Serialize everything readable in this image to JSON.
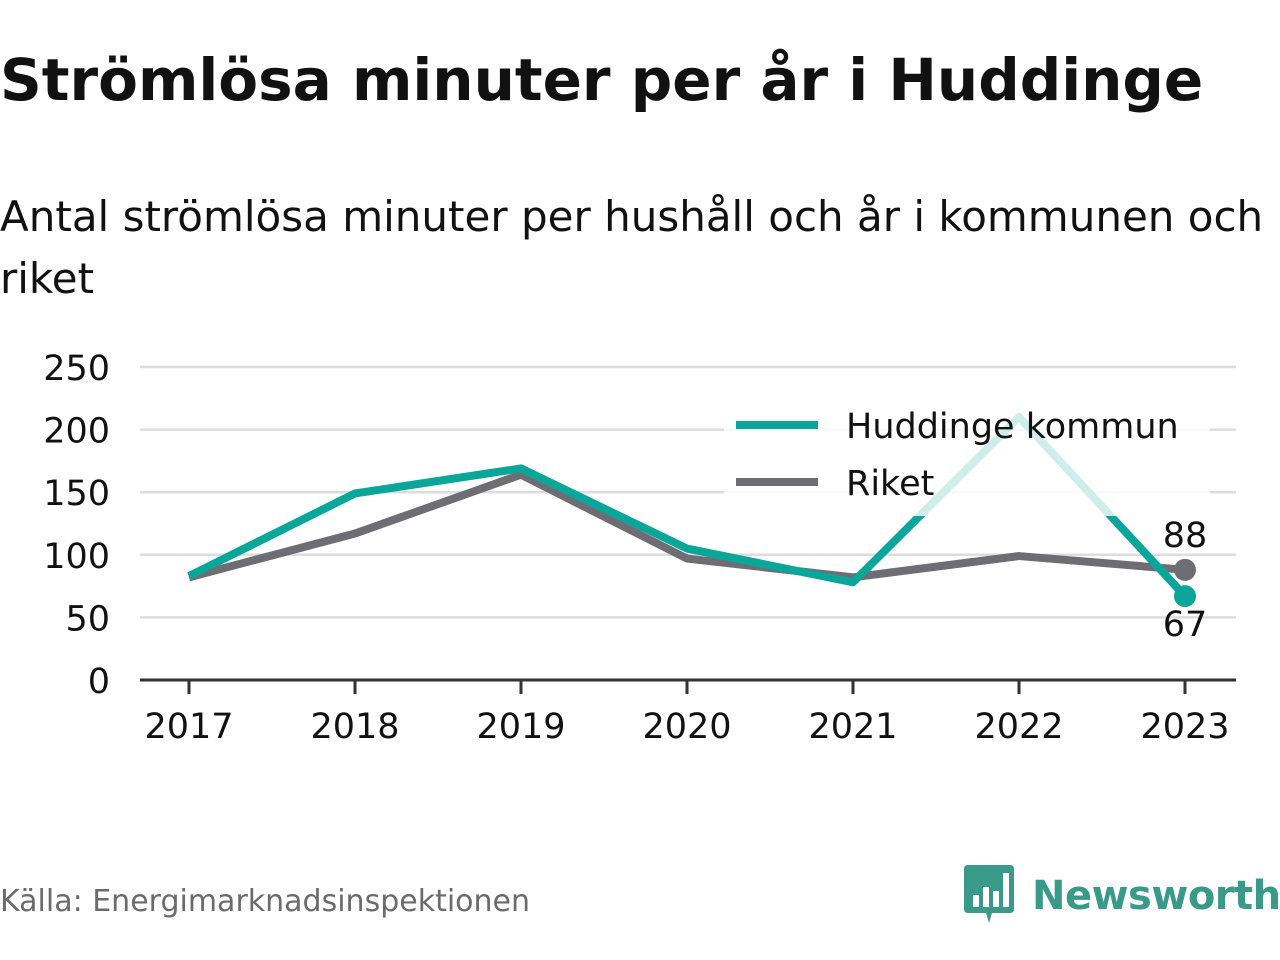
{
  "header": {
    "title": "Strömlösa minuter per år i Huddinge",
    "subtitle": "Antal strömlösa minuter per hushåll och år i kommunen och riket"
  },
  "footer": {
    "source": "Källa: Energimarknadsinspektionen",
    "brand": "Newsworthy",
    "brand_icon": "bar-chart-speech-bubble-icon"
  },
  "colors": {
    "huddinge": "#0aa699",
    "riket": "#6f6d74",
    "brand": "#3a9a8a",
    "grid": "#dddddd",
    "text": "#111111"
  },
  "chart_data": {
    "type": "line",
    "title": "Strömlösa minuter per år i Huddinge",
    "subtitle": "Antal strömlösa minuter per hushåll och år i kommunen och riket",
    "categories": [
      "2017",
      "2018",
      "2019",
      "2020",
      "2021",
      "2022",
      "2023"
    ],
    "series": [
      {
        "name": "Huddinge kommun",
        "values": [
          83,
          149,
          169,
          105,
          78,
          210,
          67
        ]
      },
      {
        "name": "Riket",
        "values": [
          82,
          117,
          164,
          97,
          82,
          99,
          88
        ]
      }
    ],
    "end_labels": [
      "88",
      "67"
    ],
    "yticks": [
      "0",
      "50",
      "100",
      "150",
      "200",
      "250"
    ],
    "ylim": [
      0,
      250
    ],
    "xlabel": "",
    "ylabel": "",
    "grid": true,
    "legend": "top-right"
  }
}
